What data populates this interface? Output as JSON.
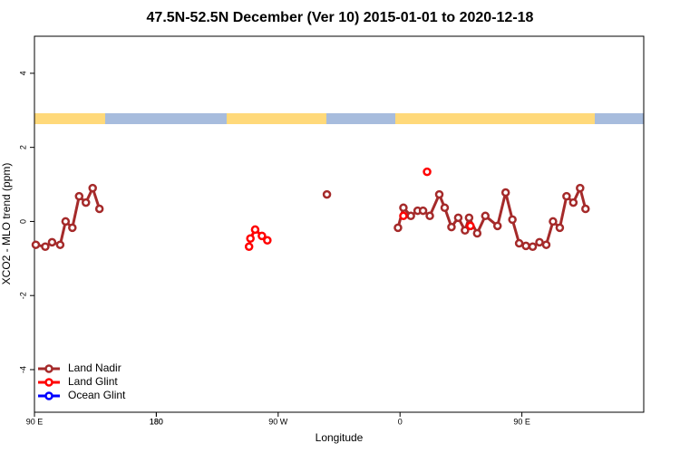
{
  "chart_data": {
    "type": "line",
    "title": "47.5N-52.5N December (Ver 10)   2015-01-01 to 2020-12-18",
    "xlabel": "Longitude",
    "ylabel": "XCO2 - MLO trend (ppm)",
    "xlim": [
      90,
      540
    ],
    "xticks": [
      {
        "value": 90,
        "label": "90 E"
      },
      180,
      {
        "value": 270,
        "label": "90 W"
      },
      {
        "value": 360,
        "label": "0"
      },
      {
        "value": 450,
        "label": "90 E"
      },
      180.0001
    ],
    "ylim": [
      -5.15,
      5
    ],
    "yticks": [
      -4,
      -2,
      0,
      2,
      4
    ],
    "legend": "bottom-left",
    "series": [
      {
        "name": "Land Nadir",
        "color": "#a52a2a",
        "x": [
          91,
          98,
          103,
          109,
          113,
          118,
          123,
          128,
          133,
          138,
          null,
          306,
          null,
          358.5,
          362.5,
          368,
          373,
          377,
          382,
          389,
          393,
          398,
          403,
          408,
          411,
          417,
          423,
          432,
          438,
          443,
          448,
          453,
          458,
          463,
          468,
          473,
          478,
          483,
          488,
          493,
          497
        ],
        "values": [
          -0.63,
          -0.68,
          -0.56,
          -0.63,
          0.0,
          -0.17,
          0.68,
          0.51,
          0.9,
          0.34,
          null,
          0.73,
          null,
          -0.17,
          0.37,
          0.15,
          0.29,
          0.29,
          0.15,
          0.73,
          0.37,
          -0.15,
          0.1,
          -0.24,
          0.1,
          -0.32,
          0.15,
          -0.12,
          0.78,
          0.05,
          -0.59,
          -0.66,
          -0.68,
          -0.56,
          -0.63,
          0.0,
          -0.17,
          0.68,
          0.51,
          0.9,
          0.34
        ]
      },
      {
        "name": "Land Glint",
        "color": "#ff0000",
        "x": [
          248.5,
          249.5,
          253,
          258,
          262,
          null,
          362.5,
          null,
          380,
          null,
          412
        ],
        "values": [
          -0.68,
          -0.46,
          -0.22,
          -0.39,
          -0.51,
          null,
          0.15,
          null,
          1.34,
          null,
          -0.12
        ]
      },
      {
        "name": "Ocean Glint",
        "color": "#0000ff",
        "x": [],
        "values": []
      }
    ]
  }
}
